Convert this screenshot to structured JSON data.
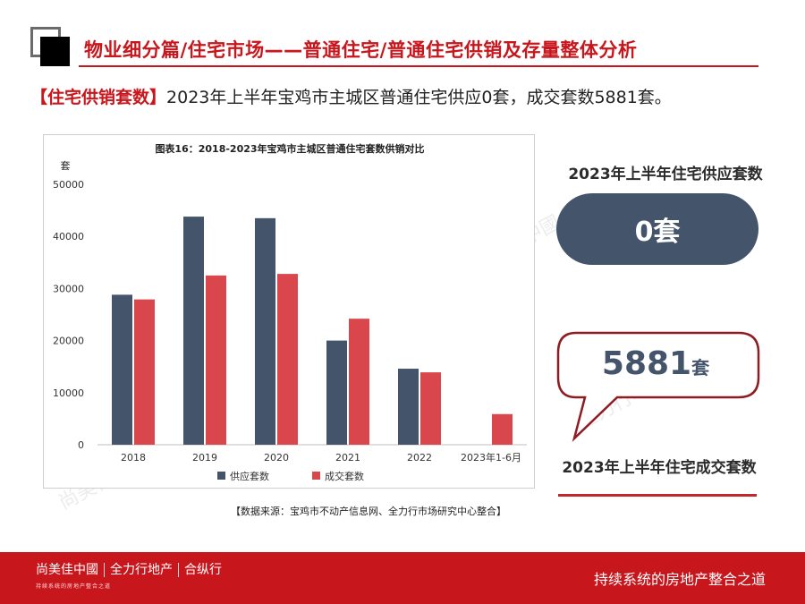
{
  "header": {
    "title": "物业细分篇/住宅市场——普通住宅/普通住宅供销及存量整体分析"
  },
  "summary": {
    "tag": "【住宅供销套数】",
    "text": "2023年上半年宝鸡市主城区普通住宅供应0套，成交套数5881套。"
  },
  "chart_data": {
    "type": "bar",
    "title": "图表16：2018-2023年宝鸡市主城区普通住宅套数供销对比",
    "ylabel": "套",
    "xlabel": "",
    "ylim": [
      0,
      50000
    ],
    "yticks": [
      0,
      10000,
      20000,
      30000,
      40000,
      50000
    ],
    "categories": [
      "2018",
      "2019",
      "2020",
      "2021",
      "2022",
      "2023年1-6月"
    ],
    "series": [
      {
        "name": "供应套数",
        "color": "#44546a",
        "values": [
          28800,
          43800,
          43500,
          20000,
          14600,
          0
        ]
      },
      {
        "name": "成交套数",
        "color": "#d9464b",
        "values": [
          27900,
          32500,
          32800,
          24200,
          13900,
          5881
        ]
      }
    ],
    "grid": false,
    "legend": "bottom"
  },
  "source_note": "【数据来源：宝鸡市不动产信息网、全力行市场研究中心整合】",
  "supply_card": {
    "title": "2023年上半年住宅供应套数",
    "value": "0套"
  },
  "deal_card": {
    "value": "5881",
    "unit": "套",
    "title": "2023年上半年住宅成交套数"
  },
  "footer": {
    "brand_1": "尚美佳中國",
    "brand_2": "全力行地产",
    "brand_3": "合纵行",
    "brand_sub": "持续系统的房地产整合之道",
    "slogan": "持续系统的房地产整合之道"
  },
  "watermark": {
    "text_1": "尚美佳中國",
    "text_2": "全力行地产",
    "text_3": "合纵行"
  },
  "colors": {
    "accent": "#c8161d",
    "supply": "#44546a",
    "deal": "#d9464b"
  }
}
